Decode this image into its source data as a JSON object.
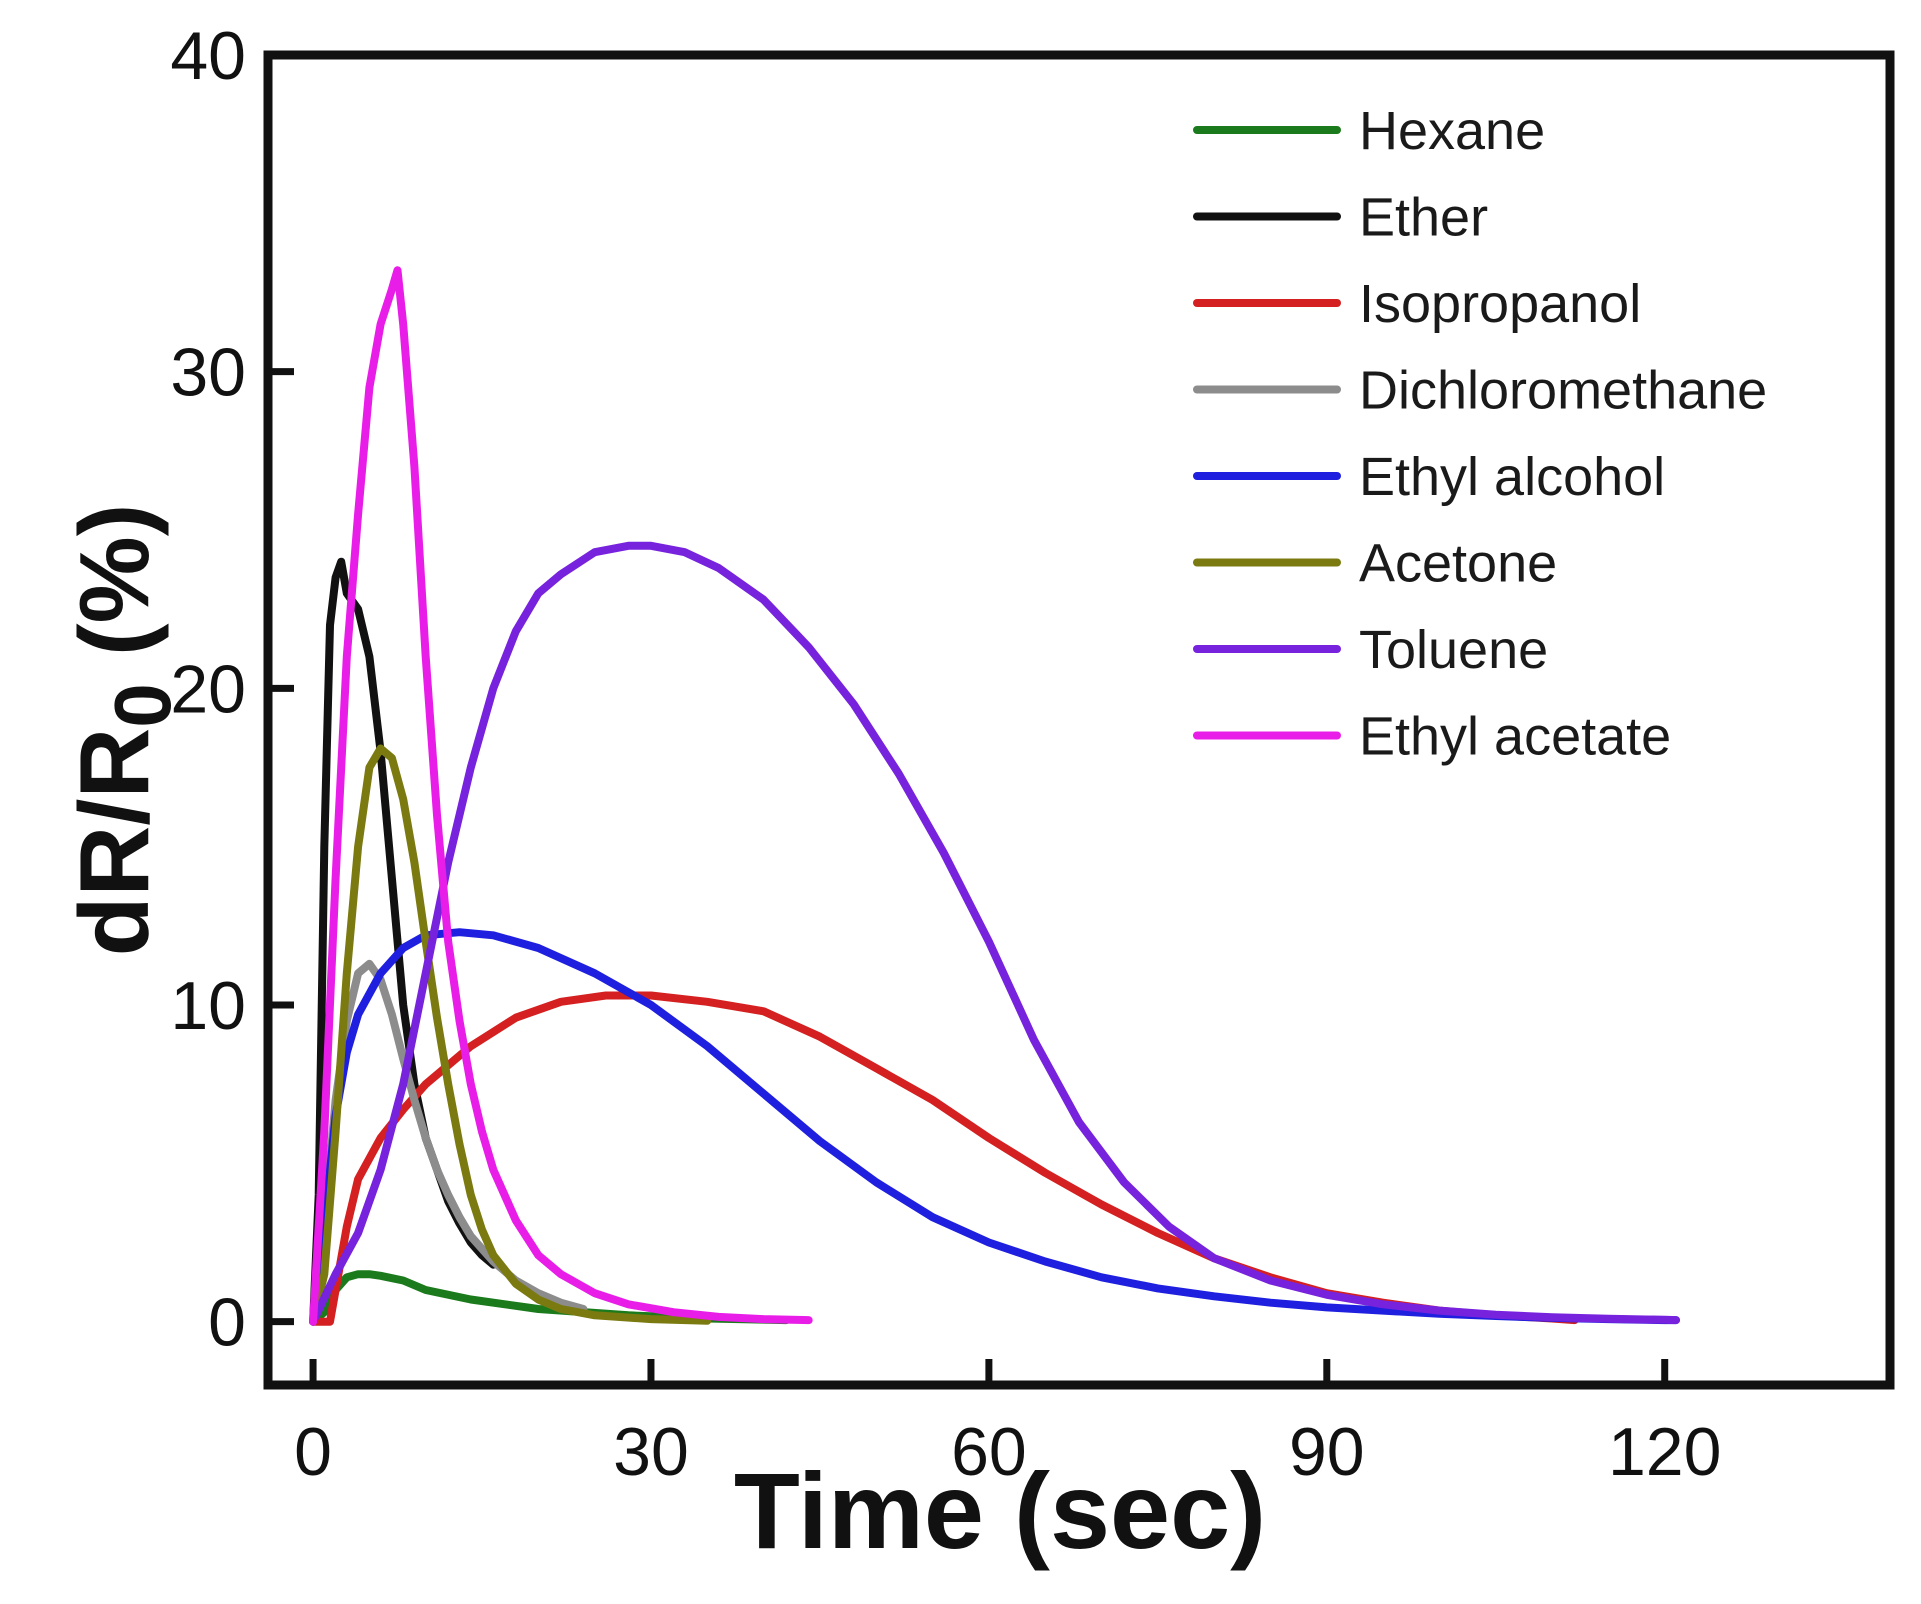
{
  "chart_data": {
    "type": "line",
    "title": "",
    "xlabel": "Time (sec)",
    "ylabel": "dR/R0 (%)",
    "ylabel_main": "dR/R",
    "ylabel_sub": "0",
    "ylabel_suffix": " (%)",
    "xlim": [
      -4,
      140
    ],
    "ylim": [
      -2,
      40
    ],
    "xticks": [
      0,
      30,
      60,
      90,
      120
    ],
    "yticks": [
      0,
      10,
      20,
      30,
      40
    ],
    "xtick_labels": [
      "0",
      "30",
      "60",
      "90",
      "120"
    ],
    "ytick_labels": [
      "0",
      "10",
      "20",
      "30",
      "40"
    ],
    "grid": false,
    "legend_position": "top-right",
    "series": [
      {
        "name": "Hexane",
        "color": "#1b7a1b",
        "x": [
          0,
          1,
          2,
          3,
          4,
          5,
          6,
          8,
          10,
          14,
          20,
          28,
          35,
          42
        ],
        "y": [
          0,
          0.3,
          1.0,
          1.4,
          1.5,
          1.5,
          1.45,
          1.3,
          1.0,
          0.7,
          0.4,
          0.2,
          0.1,
          0.05
        ]
      },
      {
        "name": "Ether",
        "color": "#111111",
        "x": [
          0,
          0.5,
          1,
          1.5,
          2,
          2.5,
          3,
          4,
          5,
          6,
          7,
          8,
          9,
          10,
          11,
          12,
          13,
          14,
          15,
          16
        ],
        "y": [
          0,
          4,
          15,
          22,
          23.5,
          24,
          23,
          22.5,
          21,
          18,
          14,
          10,
          7.5,
          5.8,
          4.8,
          3.8,
          3.1,
          2.5,
          2.1,
          1.8
        ]
      },
      {
        "name": "Isopropanol",
        "color": "#d42020",
        "x": [
          0,
          1,
          1.5,
          2,
          3,
          4,
          6,
          8,
          10,
          14,
          18,
          22,
          26,
          30,
          35,
          40,
          45,
          50,
          55,
          60,
          65,
          70,
          75,
          80,
          85,
          90,
          95,
          100,
          105,
          110,
          112
        ],
        "y": [
          0,
          0,
          0,
          1,
          3,
          4.5,
          5.8,
          6.7,
          7.5,
          8.7,
          9.6,
          10.1,
          10.3,
          10.3,
          10.1,
          9.8,
          9.0,
          8.0,
          7.0,
          5.8,
          4.7,
          3.7,
          2.8,
          2.0,
          1.4,
          0.9,
          0.6,
          0.35,
          0.2,
          0.1,
          0.05
        ]
      },
      {
        "name": "Dichloromethane",
        "color": "#8c8c8c",
        "x": [
          0,
          1,
          2,
          3,
          4,
          5,
          6,
          7,
          8,
          9,
          10,
          11,
          12,
          13,
          14,
          15,
          16,
          18,
          20,
          22,
          24
        ],
        "y": [
          0,
          3,
          7,
          9.5,
          11,
          11.3,
          10.8,
          9.7,
          8.3,
          7,
          5.8,
          4.8,
          4.0,
          3.3,
          2.7,
          2.3,
          1.9,
          1.3,
          0.9,
          0.6,
          0.4
        ]
      },
      {
        "name": "Ethyl alcohol",
        "color": "#1f1fdf",
        "x": [
          0,
          1,
          2,
          3,
          4,
          6,
          8,
          10,
          13,
          16,
          20,
          25,
          30,
          35,
          40,
          45,
          50,
          55,
          60,
          65,
          70,
          75,
          80,
          85,
          90,
          95,
          100,
          105,
          110,
          115,
          120,
          121
        ],
        "y": [
          0,
          3,
          6.5,
          8.5,
          9.7,
          11,
          11.8,
          12.2,
          12.3,
          12.2,
          11.8,
          11.0,
          10.0,
          8.7,
          7.2,
          5.7,
          4.4,
          3.3,
          2.5,
          1.9,
          1.4,
          1.05,
          0.8,
          0.6,
          0.45,
          0.35,
          0.25,
          0.18,
          0.12,
          0.08,
          0.05,
          0.05
        ]
      },
      {
        "name": "Acetone",
        "color": "#7a7a10",
        "x": [
          0,
          1,
          2,
          3,
          4,
          5,
          6,
          7,
          8,
          9,
          10,
          11,
          12,
          13,
          14,
          15,
          16,
          18,
          20,
          22,
          25,
          30,
          35
        ],
        "y": [
          0,
          1.5,
          6,
          11,
          15,
          17.5,
          18.1,
          17.8,
          16.5,
          14.5,
          12,
          9.6,
          7.5,
          5.6,
          4.0,
          2.9,
          2.1,
          1.2,
          0.7,
          0.4,
          0.2,
          0.08,
          0.03
        ]
      },
      {
        "name": "Toluene",
        "color": "#7722dd",
        "x": [
          0,
          2,
          4,
          6,
          8,
          10,
          12,
          14,
          16,
          18,
          20,
          22,
          25,
          28,
          30,
          33,
          36,
          40,
          44,
          48,
          52,
          56,
          60,
          64,
          68,
          72,
          76,
          80,
          85,
          90,
          95,
          100,
          105,
          110,
          115,
          120,
          121
        ],
        "y": [
          0,
          1.5,
          2.8,
          4.8,
          7.5,
          11,
          14.5,
          17.5,
          20,
          21.8,
          23,
          23.6,
          24.3,
          24.5,
          24.5,
          24.3,
          23.8,
          22.8,
          21.3,
          19.5,
          17.3,
          14.8,
          12.0,
          8.9,
          6.3,
          4.4,
          3.0,
          2.0,
          1.3,
          0.85,
          0.55,
          0.35,
          0.22,
          0.14,
          0.09,
          0.06,
          0.05
        ]
      },
      {
        "name": "Ethyl acetate",
        "color": "#e81ee8",
        "x": [
          0,
          1,
          2,
          3,
          4,
          5,
          6,
          7,
          7.5,
          8,
          9,
          10,
          11,
          12,
          13,
          14,
          15,
          16,
          18,
          20,
          22,
          25,
          28,
          32,
          36,
          40,
          44
        ],
        "y": [
          0,
          6,
          14,
          21,
          25.5,
          29.5,
          31.5,
          32.6,
          33.2,
          31.5,
          27,
          21,
          16,
          12,
          9.5,
          7.5,
          6,
          4.8,
          3.2,
          2.1,
          1.5,
          0.9,
          0.55,
          0.3,
          0.15,
          0.08,
          0.05
        ]
      }
    ]
  }
}
